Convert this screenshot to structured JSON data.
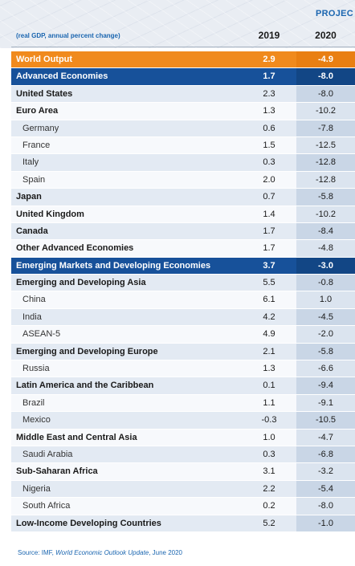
{
  "header": {
    "projection_label": "PROJEC",
    "subtitle": "(real GDP, annual percent change)",
    "col1": "2019",
    "col2": "2020"
  },
  "rows": [
    {
      "name": "World Output",
      "v2019": "2.9",
      "v2020": "-4.9",
      "style": "hl-orange"
    },
    {
      "name": "Advanced Economies",
      "v2019": "1.7",
      "v2020": "-8.0",
      "style": "hl-blue"
    },
    {
      "name": "United States",
      "v2019": "2.3",
      "v2020": "-8.0",
      "style": "bold light"
    },
    {
      "name": "Euro Area",
      "v2019": "1.3",
      "v2020": "-10.2",
      "style": "bold white"
    },
    {
      "name": "Germany",
      "v2019": "0.6",
      "v2020": "-7.8",
      "style": "sub light"
    },
    {
      "name": "France",
      "v2019": "1.5",
      "v2020": "-12.5",
      "style": "sub white"
    },
    {
      "name": "Italy",
      "v2019": "0.3",
      "v2020": "-12.8",
      "style": "sub light"
    },
    {
      "name": "Spain",
      "v2019": "2.0",
      "v2020": "-12.8",
      "style": "sub white"
    },
    {
      "name": "Japan",
      "v2019": "0.7",
      "v2020": "-5.8",
      "style": "bold light"
    },
    {
      "name": "United Kingdom",
      "v2019": "1.4",
      "v2020": "-10.2",
      "style": "bold white"
    },
    {
      "name": "Canada",
      "v2019": "1.7",
      "v2020": "-8.4",
      "style": "bold light"
    },
    {
      "name": "Other Advanced Economies",
      "v2019": "1.7",
      "v2020": "-4.8",
      "style": "bold white"
    },
    {
      "name": "Emerging Markets and Developing Economies",
      "v2019": "3.7",
      "v2020": "-3.0",
      "style": "hl-blue"
    },
    {
      "name": "Emerging and Developing Asia",
      "v2019": "5.5",
      "v2020": "-0.8",
      "style": "bold light"
    },
    {
      "name": "China",
      "v2019": "6.1",
      "v2020": "1.0",
      "style": "sub white"
    },
    {
      "name": "India",
      "v2019": "4.2",
      "v2020": "-4.5",
      "style": "sub light"
    },
    {
      "name": "ASEAN-5",
      "v2019": "4.9",
      "v2020": "-2.0",
      "style": "sub white"
    },
    {
      "name": "Emerging and Developing Europe",
      "v2019": "2.1",
      "v2020": "-5.8",
      "style": "bold light"
    },
    {
      "name": "Russia",
      "v2019": "1.3",
      "v2020": "-6.6",
      "style": "sub white"
    },
    {
      "name": "Latin America and the Caribbean",
      "v2019": "0.1",
      "v2020": "-9.4",
      "style": "bold light"
    },
    {
      "name": "Brazil",
      "v2019": "1.1",
      "v2020": "-9.1",
      "style": "sub white"
    },
    {
      "name": "Mexico",
      "v2019": "-0.3",
      "v2020": "-10.5",
      "style": "sub light"
    },
    {
      "name": "Middle East and Central Asia",
      "v2019": "1.0",
      "v2020": "-4.7",
      "style": "bold white"
    },
    {
      "name": "Saudi Arabia",
      "v2019": "0.3",
      "v2020": "-6.8",
      "style": "sub light"
    },
    {
      "name": "Sub-Saharan Africa",
      "v2019": "3.1",
      "v2020": "-3.2",
      "style": "bold white"
    },
    {
      "name": "Nigeria",
      "v2019": "2.2",
      "v2020": "-5.4",
      "style": "sub light"
    },
    {
      "name": "South Africa",
      "v2019": "0.2",
      "v2020": "-8.0",
      "style": "sub white"
    },
    {
      "name": "Low-Income Developing Countries",
      "v2019": "5.2",
      "v2020": "-1.0",
      "style": "bold light"
    }
  ],
  "source": {
    "prefix": "Source: IMF, ",
    "title": "World Economic Outlook Update",
    "suffix": ", June 2020"
  },
  "colors": {
    "orange_row": "#f08a1d",
    "blue_row": "#17519a",
    "header_text": "#1b66b0",
    "band_light": "#e3eaf3",
    "band_col": "#c9d6e6"
  }
}
